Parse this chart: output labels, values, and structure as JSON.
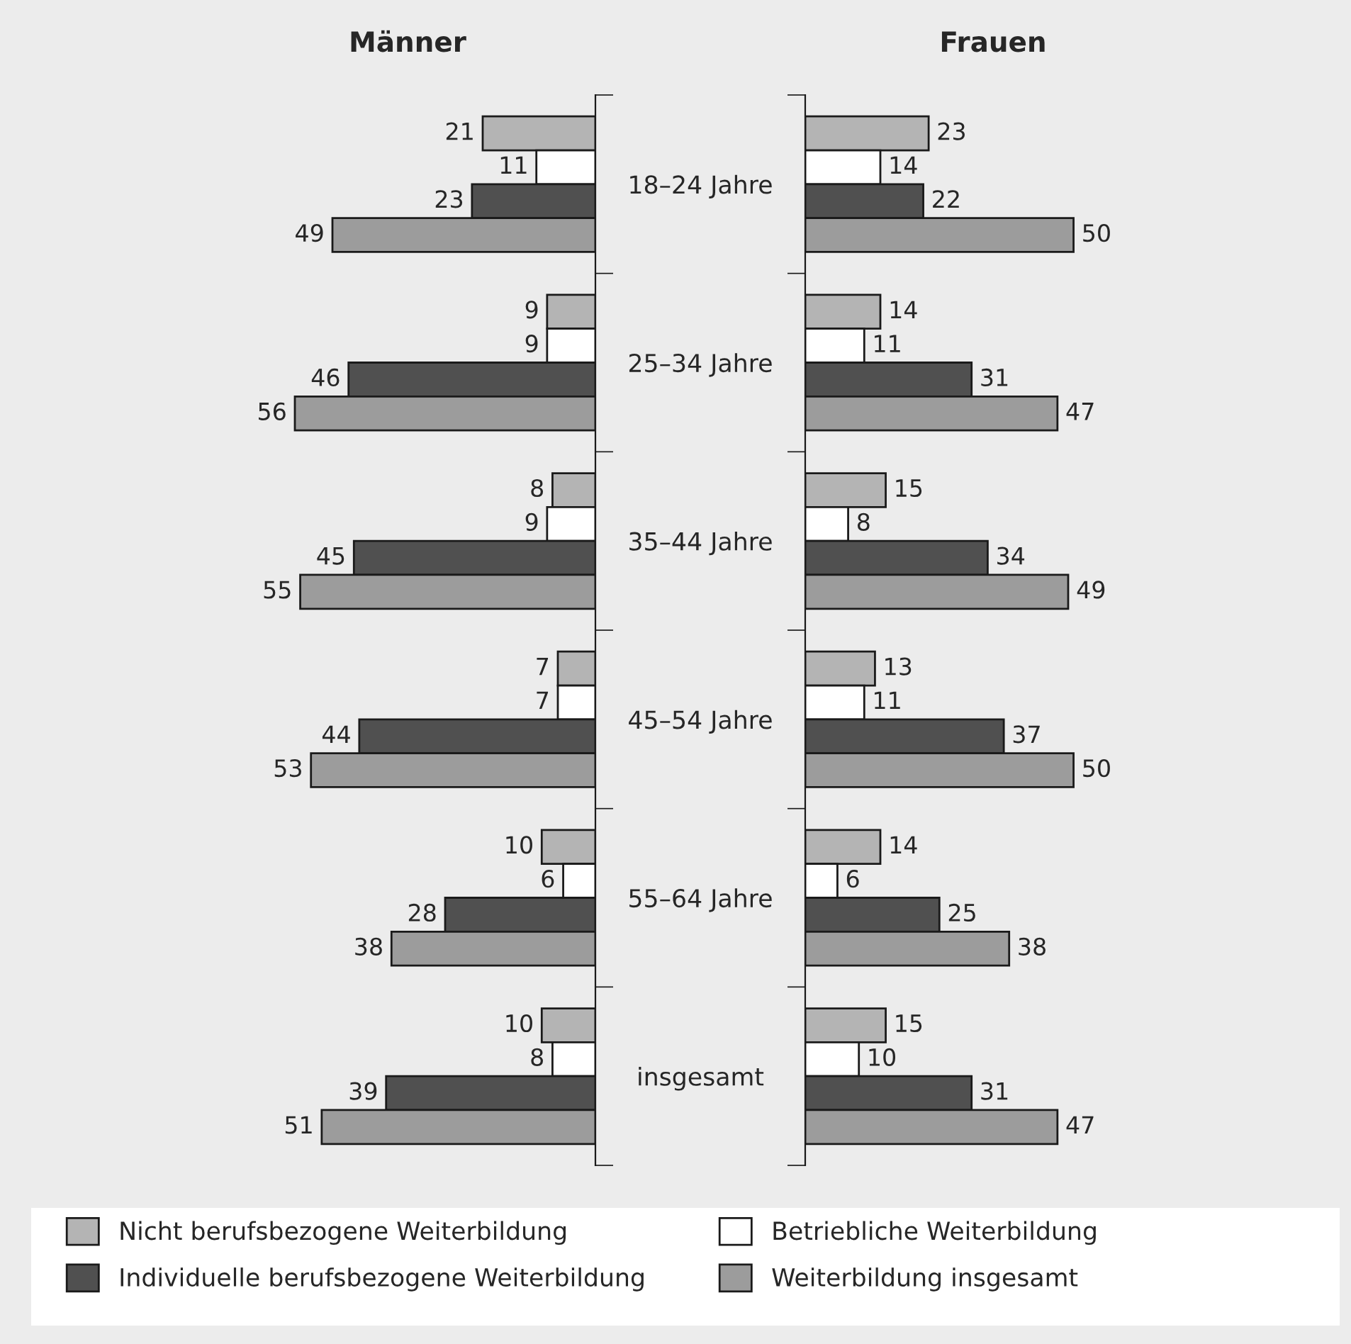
{
  "chart_data": [
    {
      "type": "bar",
      "title": "Männer",
      "orientation": "horizontal",
      "data_labels": true,
      "tick_labels": "y",
      "legend": "bottom",
      "grid": false,
      "categories": [
        "18–24 Jahre",
        "25–34 Jahre",
        "35–44 Jahre",
        "45–54 Jahre",
        "55–64 Jahre",
        "insgesamt"
      ],
      "series": [
        {
          "name": "Nicht berufsbezogene Weiterbildung",
          "color": "#b4b4b4",
          "values": [
            21,
            9,
            8,
            7,
            10,
            10
          ]
        },
        {
          "name": "Betriebliche Weiterbildung",
          "color": "#ffffff",
          "values": [
            11,
            9,
            9,
            7,
            6,
            8
          ]
        },
        {
          "name": "Individuelle berufsbezogene Weiterbildung",
          "color": "#505050",
          "values": [
            23,
            46,
            45,
            44,
            28,
            39
          ]
        },
        {
          "name": "Weiterbildung insgesamt",
          "color": "#9c9c9c",
          "values": [
            49,
            56,
            55,
            53,
            38,
            51
          ]
        }
      ]
    },
    {
      "type": "bar",
      "title": "Frauen",
      "orientation": "horizontal",
      "data_labels": true,
      "tick_labels": false,
      "grid": false,
      "categories": [
        "18–24 Jahre",
        "25–34 Jahre",
        "35–44 Jahre",
        "45–54 Jahre",
        "55–64 Jahre",
        "insgesamt"
      ],
      "series": [
        {
          "name": "Nicht berufsbezogene Weiterbildung",
          "color": "#b4b4b4",
          "values": [
            23,
            14,
            15,
            13,
            14,
            15
          ]
        },
        {
          "name": "Betriebliche Weiterbildung",
          "color": "#ffffff",
          "values": [
            14,
            11,
            8,
            11,
            6,
            10
          ]
        },
        {
          "name": "Individuelle berufsbezogene Weiterbildung",
          "color": "#505050",
          "values": [
            22,
            31,
            34,
            37,
            25,
            31
          ]
        },
        {
          "name": "Weiterbildung insgesamt",
          "color": "#9c9c9c",
          "values": [
            50,
            47,
            49,
            50,
            38,
            47
          ]
        }
      ]
    }
  ]
}
